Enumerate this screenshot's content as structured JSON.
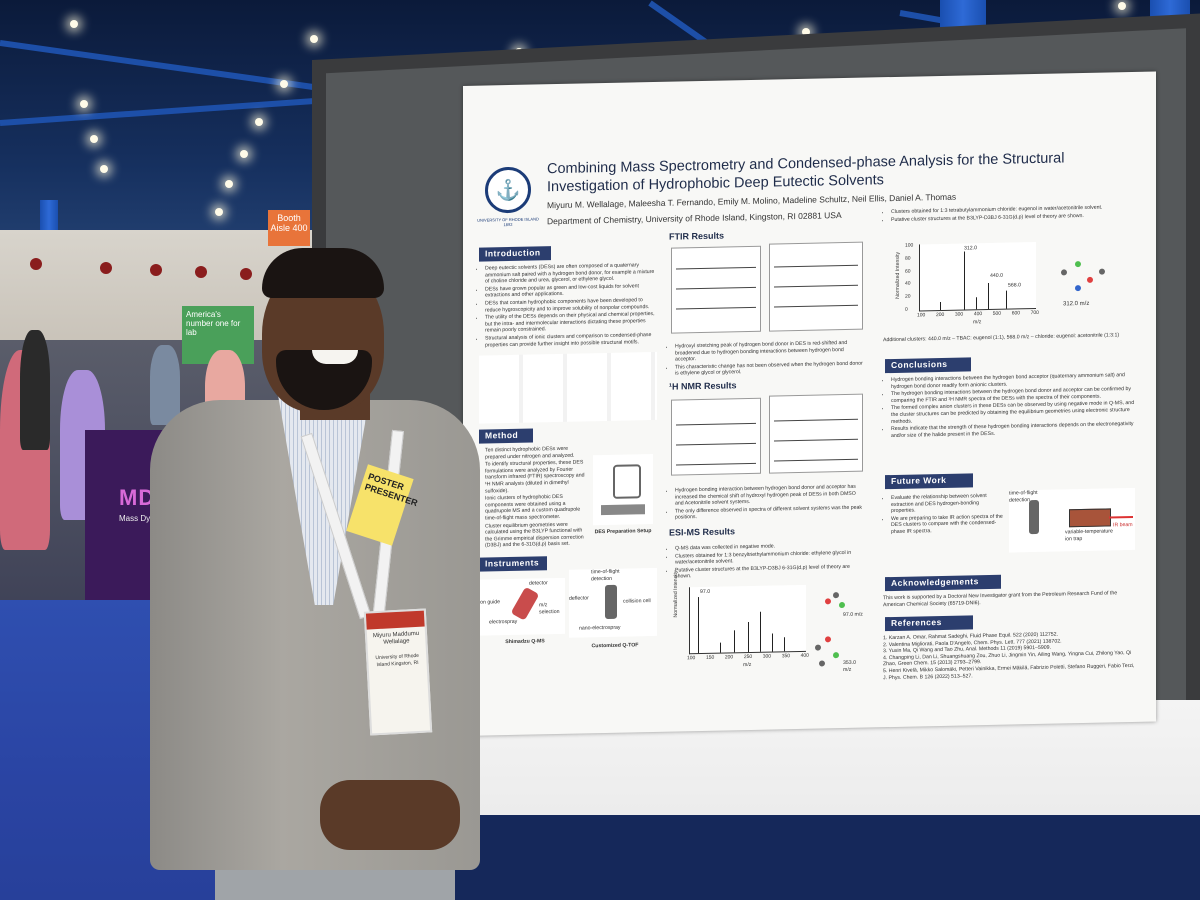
{
  "scene": {
    "description_tag": "conference-poster-session",
    "colors": {
      "board": "#3a3b3d",
      "poster": "#f8f8f6",
      "section_header": "#2c3e6e",
      "carpet": "#2f4fb0",
      "jacket": "#9a9893"
    }
  },
  "hall": {
    "booth_sign": "Booth Aisle 400",
    "banner_text": "America's number one for lab",
    "mdx_logo": "MD",
    "mdx_text": "Mass Dynam"
  },
  "poster": {
    "seal_icon": "anchor-icon",
    "seal_text": "UNIVERSITY OF RHODE ISLAND 1892",
    "title_line1": "Combining Mass Spectrometry and Condensed-phase Analysis for the Structural",
    "title_line2": "Investigation of Hydrophobic Deep Eutectic Solvents",
    "authors": "Miyuru M. Wellalage, Maleesha T. Fernando, Emily M. Molino, Madeline Schultz, Neil Ellis, Daniel A. Thomas",
    "department": "Department of Chemistry, University of Rhode Island, Kingston, RI 02881 USA",
    "sections": {
      "introduction": "Introduction",
      "method": "Method",
      "instruments": "Instruments",
      "ftir": "FTIR Results",
      "nmr": "¹H NMR Results",
      "esims": "ESI-MS Results",
      "conclusions": "Conclusions",
      "future_work": "Future Work",
      "acknowledgements": "Acknowledgements",
      "references": "References"
    },
    "intro_bullets": [
      "Deep eutectic solvents (DESs) are often composed of a quaternary ammonium salt paired with a hydrogen bond donor, for example a mixture of choline chloride and urea, glycerol, or ethylene glycol.",
      "DESs have grown popular as green and low-cost liquids for solvent extractions and other applications.",
      "DESs that contain hydrophobic components have been developed to reduce hygroscopicity and to improve solubility of nonpolar compounds.",
      "The utility of the DESs depends on their physical and chemical properties, but the intra- and intermolecular interactions dictating these properties remain poorly constrained.",
      "Structural analysis of ionic clusters and comparison to condensed-phase properties can provide further insight into possible structural motifs."
    ],
    "method_bullets": [
      "Ten distinct hydrophobic DESs were prepared under nitrogen and analyzed.",
      "To identify structural properties, these DES formulations were analyzed by Fourier transform infrared (FTIR) spectroscopy and ¹H NMR analysis (diluted in dimethyl sulfoxide).",
      "Ionic clusters of hydrophobic DES components were obtained using a quadrupole MS and a custom quadrupole time-of-flight mass spectrometer.",
      "Cluster equilibrium geometries were calculated using the B3LYP functional with the Grimme empirical dispersion correction (D3BJ) and the 6-31G(d,p) basis set."
    ],
    "des_caption": "DES Preparation Setup",
    "instrument_labels": {
      "qms": "Shimadzu Q-MS",
      "qtof": "Customized Q-TOF",
      "ion_guide": "ion guide",
      "electrospray": "electrospray",
      "mz_selection": "m/z selection",
      "detector": "detector",
      "tof": "time-of-flight detection",
      "deflector": "deflector",
      "collision_cell": "collision cell",
      "nano": "nano-electrospray"
    },
    "ftir_bullets": [
      "Hydroxyl stretching peak of hydrogen bond donor in DES is red-shifted and broadened due to hydrogen bonding interactions between hydrogen bond acceptor.",
      "This characteristic change has not been observed when the hydrogen bond donor is ethylene glycol or glycerol."
    ],
    "nmr_bullets": [
      "Hydrogen bonding interaction between hydrogen bond donor and acceptor has increased the chemical shift of hydroxyl hydrogen peak of DESs in both DMSO and Acetonitrile solvent systems.",
      "The only difference observed in spectra of different solvent systems was the peak positions."
    ],
    "esims_bullets": [
      "Q-MS data was collected in negative mode.",
      "Clusters obtained for 1:3 benzyltriethylammonium chloride: ethylene glycol in water/acetonitrile solvent.",
      "Putative cluster structures at the B3LYP-D3BJ 6-31G(d,p) level of theory are shown."
    ],
    "esims_plot": {
      "x_ticks": [
        "100",
        "150",
        "200",
        "250",
        "300",
        "350",
        "400"
      ],
      "x_label": "m/z",
      "y_label": "Normalized Intensity",
      "peak_label": "97.0",
      "mz_labels": [
        "97.0 m/z",
        "353.0 m/z"
      ]
    },
    "tbac_bullets": [
      "Clusters obtained for 1:3 tetrabutylammonium chloride: eugenol in water/acetonitrile solvent.",
      "Putative cluster structures at the B3LYP-D3BJ 6-31G(d,p) level of theory are shown."
    ],
    "tbac_plot": {
      "y_ticks": [
        "100",
        "80",
        "60",
        "40",
        "20",
        "0"
      ],
      "x_ticks": [
        "100",
        "200",
        "300",
        "400",
        "500",
        "600",
        "700"
      ],
      "peak_labels": [
        "312.0",
        "440.0",
        "568.0"
      ],
      "x_label": "m/z",
      "y_label": "Normalized Intensity",
      "mol_label": "312.0 m/z"
    },
    "additional_clusters": "Additional clusters: 440.0 m/z – TBAC: eugenol (1:1), 568.0 m/z – chloride: eugenol: acetonitrile (1:3:1)",
    "conclusion_bullets": [
      "Hydrogen bonding interactions between the hydrogen bond acceptor (quaternary ammonium salt) and hydrogen bond donor readily form anionic clusters.",
      "The hydrogen bonding interactions between the hydrogen bond donor and acceptor can be confirmed by comparing the FTIR and ¹H NMR spectra of the DESs with the spectra of their components.",
      "The formed complex anion clusters in these DESs can be observed by using negative mode in Q-MS, and the cluster structures can be predicted by obtaining the equilibrium geometries using electronic structure methods.",
      "Results indicate that the strength of these hydrogen bonding interactions depends on the electronegativity and/or size of the halide present in the DESs."
    ],
    "future_bullets": [
      "Evaluate the relationship between solvent extraction and DES hydrogen-bonding properties.",
      "We are preparing to take IR action spectra of the DES clusters to compare with the condensed-phase IR spectra."
    ],
    "future_labels": {
      "tof": "time-of-flight detection",
      "trap": "variable-temperature ion trap",
      "ir": "IR beam"
    },
    "acknowledgement_text": "This work is supported by a Doctoral New Investigator grant from the Petroleum Research Fund of the American Chemical Society (65719-DNI6).",
    "references": [
      "1. Karzan A. Omar, Rahmat Sadeghi, Fluid Phase Equil. 522 (2020) 112752.",
      "2. Valentina Migliorati, Paola D'Angelo, Chem. Phys. Lett. 777 (2021) 138702.",
      "3. Yuxin Ma, Qi Wang and Tao Zhu, Anal. Methods 11 (2019) 5901–5909.",
      "4. Changping Li, Dan Li, Shuangshuang Zou, Zhuo Li, Jingmin Yin, Ailing Wang, Yingna Cui, Zhilong Yao, Qi Zhao, Green Chem. 15 (2013) 2793–2799.",
      "5. Henri Kivelä, Mikko Salomäki, Petteri Vainikka, Ermei Mäkilä, Fabrizio Poletti, Stefano Ruggeri, Fabio Terzi, J. Phys. Chem. B 126 (2022) 513–527."
    ]
  },
  "person": {
    "ribbon": "POSTER PRESENTER",
    "badge_name": "Miyuru Maddumu Wellalage",
    "badge_org": "University of Rhode Island Kingston, RI"
  }
}
